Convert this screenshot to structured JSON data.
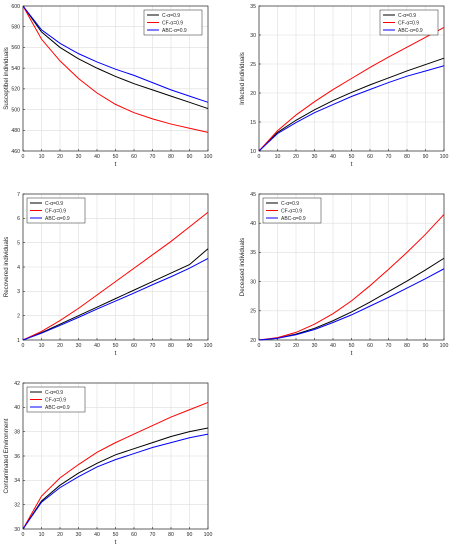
{
  "legend_labels": [
    "C-α=0.9",
    "CF-α=0.9",
    "ABC-α=0.9"
  ],
  "colors": {
    "C": "#000000",
    "CF": "#ff0000",
    "ABC": "#0000ff"
  },
  "chart_data": [
    {
      "type": "line",
      "xlabel": "t",
      "ylabel": "Susceptibel individuals",
      "xlim": [
        0,
        100
      ],
      "ylim": [
        460,
        600
      ],
      "xticks": [
        0,
        10,
        20,
        30,
        40,
        50,
        60,
        70,
        80,
        90,
        100
      ],
      "yticks": [
        460,
        480,
        500,
        520,
        540,
        560,
        580,
        600
      ],
      "grid": true,
      "legend": "top-right",
      "x": [
        0,
        10,
        20,
        30,
        40,
        50,
        60,
        70,
        80,
        90,
        100
      ],
      "series": [
        {
          "name": "C-α=0.9",
          "color": "#000000",
          "values": [
            600,
            575,
            560,
            549,
            540,
            532,
            525,
            519,
            513,
            507,
            501
          ]
        },
        {
          "name": "CF-α=0.9",
          "color": "#ff0000",
          "values": [
            600,
            568,
            547,
            530,
            516,
            505,
            497,
            491,
            486,
            482,
            478
          ]
        },
        {
          "name": "ABC-α=0.9",
          "color": "#0000ff",
          "values": [
            600,
            577,
            564,
            554,
            546,
            539,
            533,
            526,
            519,
            513,
            507
          ]
        }
      ]
    },
    {
      "type": "line",
      "xlabel": "t",
      "ylabel": "Infected individuals",
      "xlim": [
        0,
        100
      ],
      "ylim": [
        10,
        35
      ],
      "xticks": [
        0,
        10,
        20,
        30,
        40,
        50,
        60,
        70,
        80,
        90,
        100
      ],
      "yticks": [
        10,
        15,
        20,
        25,
        30,
        35
      ],
      "grid": true,
      "legend": "top-right",
      "x": [
        0,
        10,
        20,
        30,
        40,
        50,
        60,
        70,
        80,
        90,
        100
      ],
      "series": [
        {
          "name": "C-α=0.9",
          "color": "#000000",
          "values": [
            10,
            13.2,
            15.3,
            17.1,
            18.7,
            20.1,
            21.4,
            22.6,
            23.8,
            24.9,
            26
          ]
        },
        {
          "name": "CF-α=0.9",
          "color": "#ff0000",
          "values": [
            10,
            13.5,
            16.2,
            18.5,
            20.6,
            22.5,
            24.4,
            26.2,
            27.9,
            29.6,
            31.3
          ]
        },
        {
          "name": "ABC-α=0.9",
          "color": "#0000ff",
          "values": [
            10,
            13.0,
            14.9,
            16.6,
            18.0,
            19.4,
            20.6,
            21.8,
            22.9,
            23.8,
            24.7
          ]
        }
      ]
    },
    {
      "type": "line",
      "xlabel": "t",
      "ylabel": "Recovered individuals",
      "xlim": [
        0,
        100
      ],
      "ylim": [
        1,
        7
      ],
      "xticks": [
        0,
        10,
        20,
        30,
        40,
        50,
        60,
        70,
        80,
        90,
        100
      ],
      "yticks": [
        1,
        2,
        3,
        4,
        5,
        6,
        7
      ],
      "grid": true,
      "legend": "top-left",
      "x": [
        0,
        10,
        20,
        30,
        40,
        50,
        60,
        70,
        80,
        90,
        100
      ],
      "series": [
        {
          "name": "C-α=0.9",
          "color": "#000000",
          "values": [
            1,
            1.3,
            1.65,
            2.0,
            2.35,
            2.7,
            3.05,
            3.4,
            3.75,
            4.1,
            4.75
          ]
        },
        {
          "name": "CF-α=0.9",
          "color": "#ff0000",
          "values": [
            1,
            1.35,
            1.8,
            2.3,
            2.85,
            3.4,
            3.95,
            4.5,
            5.05,
            5.65,
            6.25
          ]
        },
        {
          "name": "ABC-α=0.9",
          "color": "#0000ff",
          "values": [
            1,
            1.28,
            1.6,
            1.93,
            2.27,
            2.6,
            2.93,
            3.27,
            3.6,
            3.95,
            4.35
          ]
        }
      ]
    },
    {
      "type": "line",
      "xlabel": "t",
      "ylabel": "Deceased individuals",
      "xlim": [
        0,
        100
      ],
      "ylim": [
        20,
        45
      ],
      "xticks": [
        0,
        10,
        20,
        30,
        40,
        50,
        60,
        70,
        80,
        90,
        100
      ],
      "yticks": [
        20,
        25,
        30,
        35,
        40,
        45
      ],
      "grid": true,
      "legend": "top-left",
      "x": [
        0,
        10,
        20,
        30,
        40,
        50,
        60,
        70,
        80,
        90,
        100
      ],
      "series": [
        {
          "name": "C-α=0.9",
          "color": "#000000",
          "values": [
            20,
            20.3,
            21.0,
            22.0,
            23.3,
            24.8,
            26.5,
            28.3,
            30.1,
            32.0,
            34.0
          ]
        },
        {
          "name": "CF-α=0.9",
          "color": "#ff0000",
          "values": [
            20,
            20.4,
            21.3,
            22.7,
            24.5,
            26.7,
            29.3,
            32.1,
            35.0,
            38.1,
            41.5
          ]
        },
        {
          "name": "ABC-α=0.9",
          "color": "#0000ff",
          "values": [
            20,
            20.3,
            20.9,
            21.8,
            23.0,
            24.3,
            25.8,
            27.3,
            28.9,
            30.5,
            32.2
          ]
        }
      ]
    },
    {
      "type": "line",
      "xlabel": "t",
      "ylabel": "Contaminated Environment",
      "xlim": [
        0,
        100
      ],
      "ylim": [
        30,
        42
      ],
      "xticks": [
        0,
        10,
        20,
        30,
        40,
        50,
        60,
        70,
        80,
        90,
        100
      ],
      "yticks": [
        30,
        32,
        34,
        36,
        38,
        40,
        42
      ],
      "grid": true,
      "legend": "top-left",
      "x": [
        0,
        10,
        20,
        30,
        40,
        50,
        60,
        70,
        80,
        90,
        100
      ],
      "series": [
        {
          "name": "C-α=0.9",
          "color": "#000000",
          "values": [
            30,
            32.3,
            33.6,
            34.6,
            35.4,
            36.1,
            36.6,
            37.1,
            37.6,
            38.0,
            38.3
          ]
        },
        {
          "name": "CF-α=0.9",
          "color": "#ff0000",
          "values": [
            30,
            32.7,
            34.2,
            35.3,
            36.3,
            37.1,
            37.8,
            38.5,
            39.2,
            39.8,
            40.4
          ]
        },
        {
          "name": "ABC-α=0.9",
          "color": "#0000ff",
          "values": [
            30,
            32.2,
            33.4,
            34.3,
            35.1,
            35.7,
            36.2,
            36.7,
            37.1,
            37.5,
            37.8
          ]
        }
      ]
    }
  ]
}
